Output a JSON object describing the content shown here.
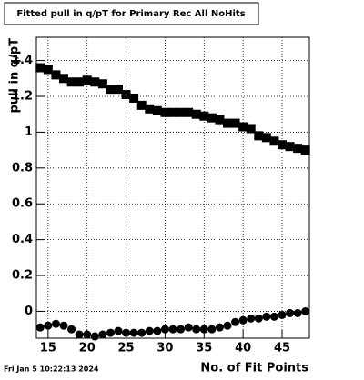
{
  "chart_data": {
    "type": "scatter",
    "title": "Fitted pull in q/pT for Primary Rec All NoHits",
    "x_label": "No. of Fit Points",
    "y_label": "pull in q/pT",
    "footer": "Fri Jan  5 10:22:13 2024",
    "x": [
      14,
      15,
      16,
      17,
      18,
      19,
      20,
      21,
      22,
      23,
      24,
      25,
      26,
      27,
      28,
      29,
      30,
      31,
      32,
      33,
      34,
      35,
      36,
      37,
      38,
      39,
      40,
      41,
      42,
      43,
      44,
      45,
      46,
      47,
      48
    ],
    "series": [
      {
        "color": "#000000",
        "marker": "square",
        "values": [
          1.36,
          1.35,
          1.32,
          1.3,
          1.28,
          1.28,
          1.29,
          1.28,
          1.27,
          1.24,
          1.24,
          1.21,
          1.19,
          1.15,
          1.13,
          1.12,
          1.11,
          1.11,
          1.11,
          1.11,
          1.1,
          1.09,
          1.08,
          1.07,
          1.05,
          1.05,
          1.03,
          1.02,
          0.98,
          0.97,
          0.95,
          0.93,
          0.92,
          0.91,
          0.9
        ]
      },
      {
        "color": "#000000",
        "marker": "circle",
        "values": [
          -0.09,
          -0.08,
          -0.07,
          -0.08,
          -0.1,
          -0.13,
          -0.13,
          -0.14,
          -0.13,
          -0.12,
          -0.11,
          -0.12,
          -0.12,
          -0.12,
          -0.11,
          -0.11,
          -0.1,
          -0.1,
          -0.1,
          -0.09,
          -0.1,
          -0.1,
          -0.1,
          -0.09,
          -0.08,
          -0.06,
          -0.05,
          -0.04,
          -0.04,
          -0.03,
          -0.03,
          -0.02,
          -0.01,
          -0.01,
          0.0
        ]
      }
    ],
    "xlim": [
      13.5,
      48.5
    ],
    "ylim": [
      -0.15,
      1.53
    ],
    "xticks": [
      15,
      20,
      25,
      30,
      35,
      40,
      45
    ],
    "yticks": [
      0,
      0.2,
      0.4,
      0.6,
      0.8,
      1,
      1.2,
      1.4
    ],
    "grid": true
  }
}
